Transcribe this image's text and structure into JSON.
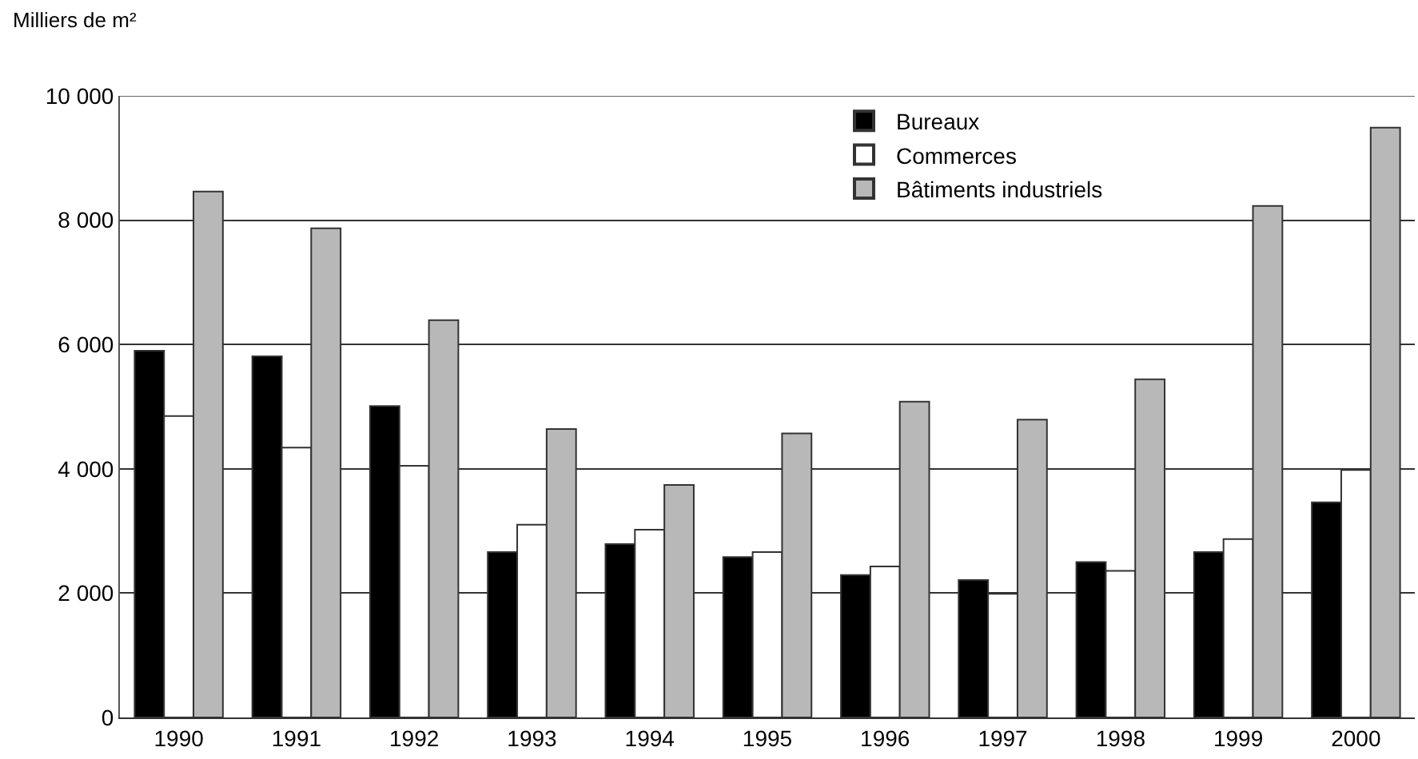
{
  "chart_data": {
    "type": "bar",
    "ylabel": "Milliers de m²",
    "categories": [
      "1990",
      "1991",
      "1992",
      "1993",
      "1994",
      "1995",
      "1996",
      "1997",
      "1998",
      "1999",
      "2000"
    ],
    "series": [
      {
        "name": "Bureaux",
        "color": "#000000",
        "values": [
          5900,
          5810,
          5010,
          2660,
          2790,
          2580,
          2290,
          2210,
          2500,
          2660,
          3460
        ]
      },
      {
        "name": "Commerces",
        "color": "#ffffff",
        "values": [
          4850,
          4340,
          4050,
          3100,
          3020,
          2660,
          2430,
          1990,
          2360,
          2870,
          3980
        ]
      },
      {
        "name": "Bâtiments industriels",
        "color": "#b8b8b8",
        "values": [
          8460,
          7870,
          6390,
          4640,
          3740,
          4570,
          5080,
          4790,
          5440,
          8230,
          9490
        ]
      }
    ],
    "ylim": [
      0,
      10000
    ],
    "yticks": [
      {
        "value": 0,
        "label": "0"
      },
      {
        "value": 2000,
        "label": "2 000"
      },
      {
        "value": 4000,
        "label": "4 000"
      },
      {
        "value": 6000,
        "label": "6 000"
      },
      {
        "value": 8000,
        "label": "8 000"
      },
      {
        "value": 10000,
        "label": "10 000"
      }
    ],
    "grid": "y",
    "legend": "top right"
  }
}
